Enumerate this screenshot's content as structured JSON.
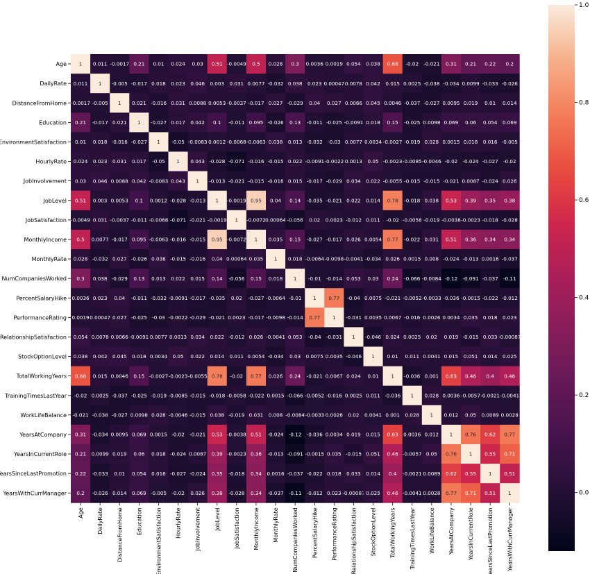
{
  "chart_data": {
    "type": "heatmap",
    "variables": [
      "Age",
      "DailyRate",
      "DistanceFromHome",
      "Education",
      "EnvironmentSatisfaction",
      "HourlyRate",
      "JobInvolvement",
      "JobLevel",
      "JobSatisfaction",
      "MonthlyIncome",
      "MonthlyRate",
      "NumCompaniesWorked",
      "PercentSalaryHike",
      "PerformanceRating",
      "RelationshipSatisfaction",
      "StockOptionLevel",
      "TotalWorkingYears",
      "TrainingTimesLastYear",
      "WorkLifeBalance",
      "YearsAtCompany",
      "YearsInCurrentRole",
      "YearsSinceLastPromotion",
      "YearsWithCurrManager"
    ],
    "values": [
      [
        1,
        0.011,
        -0.0017,
        0.21,
        0.01,
        0.024,
        0.03,
        0.51,
        -0.0049,
        0.5,
        0.028,
        0.3,
        0.0036,
        0.0019,
        0.054,
        0.038,
        0.68,
        -0.02,
        -0.021,
        0.31,
        0.21,
        0.22,
        0.2
      ],
      [
        0.011,
        1,
        -0.005,
        -0.017,
        0.018,
        0.023,
        0.046,
        0.003,
        0.031,
        0.0077,
        -0.032,
        0.038,
        0.023,
        0.00047,
        0.0078,
        0.042,
        0.015,
        0.0025,
        -0.038,
        -0.034,
        0.0099,
        -0.033,
        -0.026
      ],
      [
        -0.0017,
        -0.005,
        1,
        0.021,
        -0.016,
        0.031,
        0.0088,
        0.0053,
        -0.0037,
        -0.017,
        0.027,
        -0.029,
        0.04,
        0.027,
        0.0066,
        0.045,
        0.0046,
        -0.037,
        -0.027,
        0.0095,
        0.019,
        0.01,
        0.014
      ],
      [
        0.21,
        -0.017,
        0.021,
        1,
        -0.027,
        0.017,
        0.042,
        0.1,
        -0.011,
        0.095,
        -0.026,
        0.13,
        -0.011,
        -0.025,
        -0.0091,
        0.018,
        0.15,
        -0.025,
        0.0098,
        0.069,
        0.06,
        0.054,
        0.069
      ],
      [
        0.01,
        0.018,
        -0.016,
        -0.027,
        1,
        -0.05,
        -0.0083,
        0.0012,
        -0.0068,
        -0.0063,
        0.038,
        0.013,
        -0.032,
        -0.03,
        0.0077,
        0.0034,
        -0.0027,
        -0.019,
        0.028,
        0.0015,
        0.018,
        0.016,
        -0.005
      ],
      [
        0.024,
        0.023,
        0.031,
        0.017,
        -0.05,
        1,
        0.043,
        -0.028,
        -0.071,
        -0.016,
        -0.015,
        0.022,
        -0.0091,
        -0.0022,
        0.0013,
        0.05,
        -0.0023,
        -0.0085,
        -0.0046,
        -0.02,
        -0.024,
        -0.027,
        -0.02
      ],
      [
        0.03,
        0.046,
        0.0088,
        0.042,
        -0.0083,
        0.043,
        1,
        -0.013,
        -0.021,
        -0.015,
        -0.016,
        0.015,
        -0.017,
        -0.029,
        0.034,
        0.022,
        -0.0055,
        -0.015,
        -0.015,
        -0.021,
        0.0087,
        -0.024,
        0.026
      ],
      [
        0.51,
        0.003,
        0.0053,
        0.1,
        0.0012,
        -0.028,
        -0.013,
        1,
        -0.0019,
        0.95,
        0.04,
        0.14,
        -0.035,
        -0.021,
        0.022,
        0.014,
        0.78,
        -0.018,
        0.038,
        0.53,
        0.39,
        0.35,
        0.38
      ],
      [
        -0.0049,
        0.031,
        -0.0037,
        -0.011,
        -0.0068,
        -0.071,
        -0.021,
        -0.0019,
        1,
        -0.0072,
        0.00064,
        -0.056,
        0.02,
        0.0023,
        -0.012,
        0.011,
        -0.02,
        -0.0058,
        -0.019,
        -0.0038,
        -0.0023,
        -0.018,
        -0.028
      ],
      [
        0.5,
        0.0077,
        -0.017,
        0.095,
        -0.0063,
        -0.016,
        -0.015,
        0.95,
        -0.0072,
        1,
        0.035,
        0.15,
        -0.027,
        -0.017,
        0.026,
        0.0054,
        0.77,
        -0.022,
        0.031,
        0.51,
        0.36,
        0.34,
        0.34
      ],
      [
        0.028,
        -0.032,
        0.027,
        -0.026,
        0.038,
        -0.015,
        -0.016,
        0.04,
        0.00064,
        0.035,
        1,
        0.018,
        -0.0064,
        -0.0098,
        -0.0041,
        -0.034,
        0.026,
        0.0015,
        0.008,
        -0.024,
        -0.013,
        0.0016,
        -0.037
      ],
      [
        0.3,
        0.038,
        -0.029,
        0.13,
        0.013,
        0.022,
        0.015,
        0.14,
        -0.056,
        0.15,
        0.018,
        1,
        -0.01,
        -0.014,
        0.053,
        0.03,
        0.24,
        -0.066,
        -0.0084,
        -0.12,
        -0.091,
        -0.037,
        -0.11
      ],
      [
        0.0036,
        0.023,
        0.04,
        -0.011,
        -0.032,
        -0.0091,
        -0.017,
        -0.035,
        0.02,
        -0.027,
        -0.0064,
        -0.01,
        1,
        0.77,
        -0.04,
        0.0075,
        -0.021,
        -0.0052,
        -0.0033,
        -0.036,
        -0.0015,
        -0.022,
        -0.012
      ],
      [
        0.0019,
        0.00047,
        0.027,
        -0.025,
        -0.03,
        -0.0022,
        -0.029,
        -0.021,
        0.0023,
        -0.017,
        -0.0098,
        -0.014,
        0.77,
        1,
        -0.031,
        0.0035,
        0.0067,
        -0.016,
        0.0026,
        0.0034,
        0.035,
        0.018,
        0.023
      ],
      [
        0.054,
        0.0078,
        0.0066,
        -0.0091,
        0.0077,
        0.0013,
        0.034,
        0.022,
        -0.012,
        0.026,
        -0.0041,
        0.053,
        -0.04,
        -0.031,
        1,
        -0.046,
        0.024,
        0.0025,
        0.02,
        0.019,
        -0.015,
        0.033,
        -0.00087
      ],
      [
        0.038,
        0.042,
        0.045,
        0.018,
        0.0034,
        0.05,
        0.022,
        0.014,
        0.011,
        0.0054,
        -0.034,
        0.03,
        0.0075,
        0.0035,
        -0.046,
        1,
        0.01,
        0.011,
        0.0041,
        0.015,
        0.051,
        0.014,
        0.025
      ],
      [
        0.68,
        0.015,
        0.0046,
        0.15,
        -0.0027,
        -0.0023,
        -0.0055,
        0.78,
        -0.02,
        0.77,
        0.026,
        0.24,
        -0.021,
        0.0067,
        0.024,
        0.01,
        1,
        -0.036,
        0.001,
        0.63,
        0.46,
        0.4,
        0.46
      ],
      [
        -0.02,
        0.0025,
        -0.037,
        -0.025,
        -0.019,
        -0.0085,
        -0.015,
        -0.018,
        -0.0058,
        -0.022,
        0.0015,
        -0.066,
        -0.0052,
        -0.016,
        0.0025,
        0.011,
        -0.036,
        1,
        0.028,
        0.0036,
        -0.0057,
        -0.0021,
        -0.0041
      ],
      [
        -0.021,
        -0.038,
        -0.027,
        0.0098,
        0.028,
        -0.0046,
        -0.015,
        0.038,
        -0.019,
        0.031,
        0.008,
        -0.0084,
        -0.0033,
        0.0026,
        0.02,
        0.0041,
        0.001,
        0.028,
        1,
        0.012,
        0.05,
        0.0089,
        0.0028
      ],
      [
        0.31,
        -0.034,
        0.0095,
        0.069,
        0.0015,
        -0.02,
        -0.021,
        0.53,
        -0.0038,
        0.51,
        -0.024,
        -0.12,
        -0.036,
        0.0034,
        0.019,
        0.015,
        0.63,
        0.0036,
        0.012,
        1,
        0.76,
        0.62,
        0.77
      ],
      [
        0.21,
        0.0099,
        0.019,
        0.06,
        0.018,
        -0.024,
        0.0087,
        0.39,
        -0.0023,
        0.36,
        -0.013,
        -0.091,
        -0.0015,
        0.035,
        -0.015,
        0.051,
        0.46,
        -0.0057,
        0.05,
        0.76,
        1,
        0.55,
        0.71
      ],
      [
        0.22,
        -0.033,
        0.01,
        0.054,
        0.016,
        -0.027,
        -0.024,
        0.35,
        -0.018,
        0.34,
        0.0016,
        -0.037,
        -0.022,
        0.018,
        0.033,
        0.014,
        0.4,
        -0.0021,
        0.0089,
        0.62,
        0.55,
        1,
        0.51
      ],
      [
        0.2,
        -0.026,
        0.014,
        0.069,
        -0.005,
        -0.02,
        0.026,
        0.38,
        -0.028,
        0.34,
        -0.037,
        -0.11,
        -0.012,
        0.023,
        -0.00087,
        0.025,
        0.46,
        -0.0041,
        0.0028,
        0.77,
        0.71,
        0.51,
        1
      ]
    ],
    "colorbar": {
      "range": [
        -0.12,
        1.0
      ],
      "ticks": [
        "0.0",
        "0.2",
        "0.4",
        "0.6",
        "0.8",
        "1.0"
      ],
      "colormap": "rocket"
    },
    "title": "",
    "xlabel": "",
    "ylabel": ""
  }
}
